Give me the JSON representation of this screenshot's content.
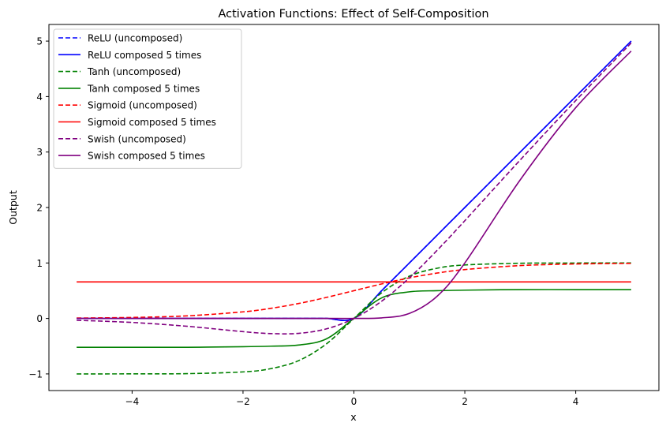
{
  "chart_data": {
    "type": "line",
    "title": "Activation Functions: Effect of Self-Composition",
    "xlabel": "x",
    "ylabel": "Output",
    "xlim": [
      -5.5,
      5.5
    ],
    "ylim": [
      -1.3,
      5.3
    ],
    "xticks": [
      -4,
      -2,
      0,
      2,
      4
    ],
    "xtick_labels": [
      "−4",
      "−2",
      "0",
      "2",
      "4"
    ],
    "yticks": [
      -1,
      0,
      1,
      2,
      3,
      4,
      5
    ],
    "ytick_labels": [
      "−1",
      "0",
      "1",
      "2",
      "3",
      "4",
      "5"
    ],
    "grid": false,
    "legend_position": "top-left",
    "x": [
      -5,
      -4,
      -3,
      -2,
      -1.5,
      -1,
      -0.5,
      0,
      0.5,
      1,
      1.5,
      2,
      3,
      4,
      5
    ],
    "series": [
      {
        "name": "ReLU (uncomposed)",
        "color": "#0000ff",
        "dash": "dashed",
        "values": [
          0,
          0,
          0,
          0,
          0,
          0,
          0,
          0,
          0.5,
          1,
          1.5,
          2,
          3,
          4,
          5
        ]
      },
      {
        "name": "ReLU composed 5 times",
        "color": "#0000ff",
        "dash": "solid",
        "values": [
          0,
          0,
          0,
          0,
          0,
          0,
          0,
          0,
          0.5,
          1,
          1.5,
          2,
          3,
          4,
          5
        ]
      },
      {
        "name": "Tanh (uncomposed)",
        "color": "#008000",
        "dash": "dashed",
        "values": [
          -1.0,
          -0.999,
          -0.995,
          -0.964,
          -0.905,
          -0.762,
          -0.462,
          0,
          0.462,
          0.762,
          0.905,
          0.964,
          0.995,
          0.999,
          1.0
        ]
      },
      {
        "name": "Tanh composed 5 times",
        "color": "#008000",
        "dash": "solid",
        "values": [
          -0.52,
          -0.52,
          -0.52,
          -0.51,
          -0.5,
          -0.48,
          -0.37,
          0,
          0.37,
          0.48,
          0.5,
          0.51,
          0.52,
          0.52,
          0.52
        ]
      },
      {
        "name": "Sigmoid (uncomposed)",
        "color": "#ff0000",
        "dash": "dashed",
        "values": [
          0.007,
          0.018,
          0.047,
          0.119,
          0.182,
          0.269,
          0.378,
          0.5,
          0.622,
          0.731,
          0.818,
          0.881,
          0.953,
          0.982,
          0.993
        ]
      },
      {
        "name": "Sigmoid composed 5 times",
        "color": "#ff0000",
        "dash": "solid",
        "values": [
          0.659,
          0.659,
          0.659,
          0.659,
          0.659,
          0.659,
          0.659,
          0.659,
          0.659,
          0.659,
          0.659,
          0.659,
          0.659,
          0.659,
          0.659
        ]
      },
      {
        "name": "Swish (uncomposed)",
        "color": "#800080",
        "dash": "dashed",
        "values": [
          -0.033,
          -0.072,
          -0.142,
          -0.238,
          -0.273,
          -0.269,
          -0.189,
          0,
          0.311,
          0.731,
          1.227,
          1.762,
          2.858,
          3.928,
          4.966
        ]
      },
      {
        "name": "Swish composed 5 times",
        "color": "#800080",
        "dash": "solid",
        "values": [
          0,
          0,
          0,
          0,
          0,
          0,
          0,
          0,
          0.01,
          0.09,
          0.4,
          1.0,
          2.5,
          3.8,
          4.82
        ]
      }
    ]
  }
}
